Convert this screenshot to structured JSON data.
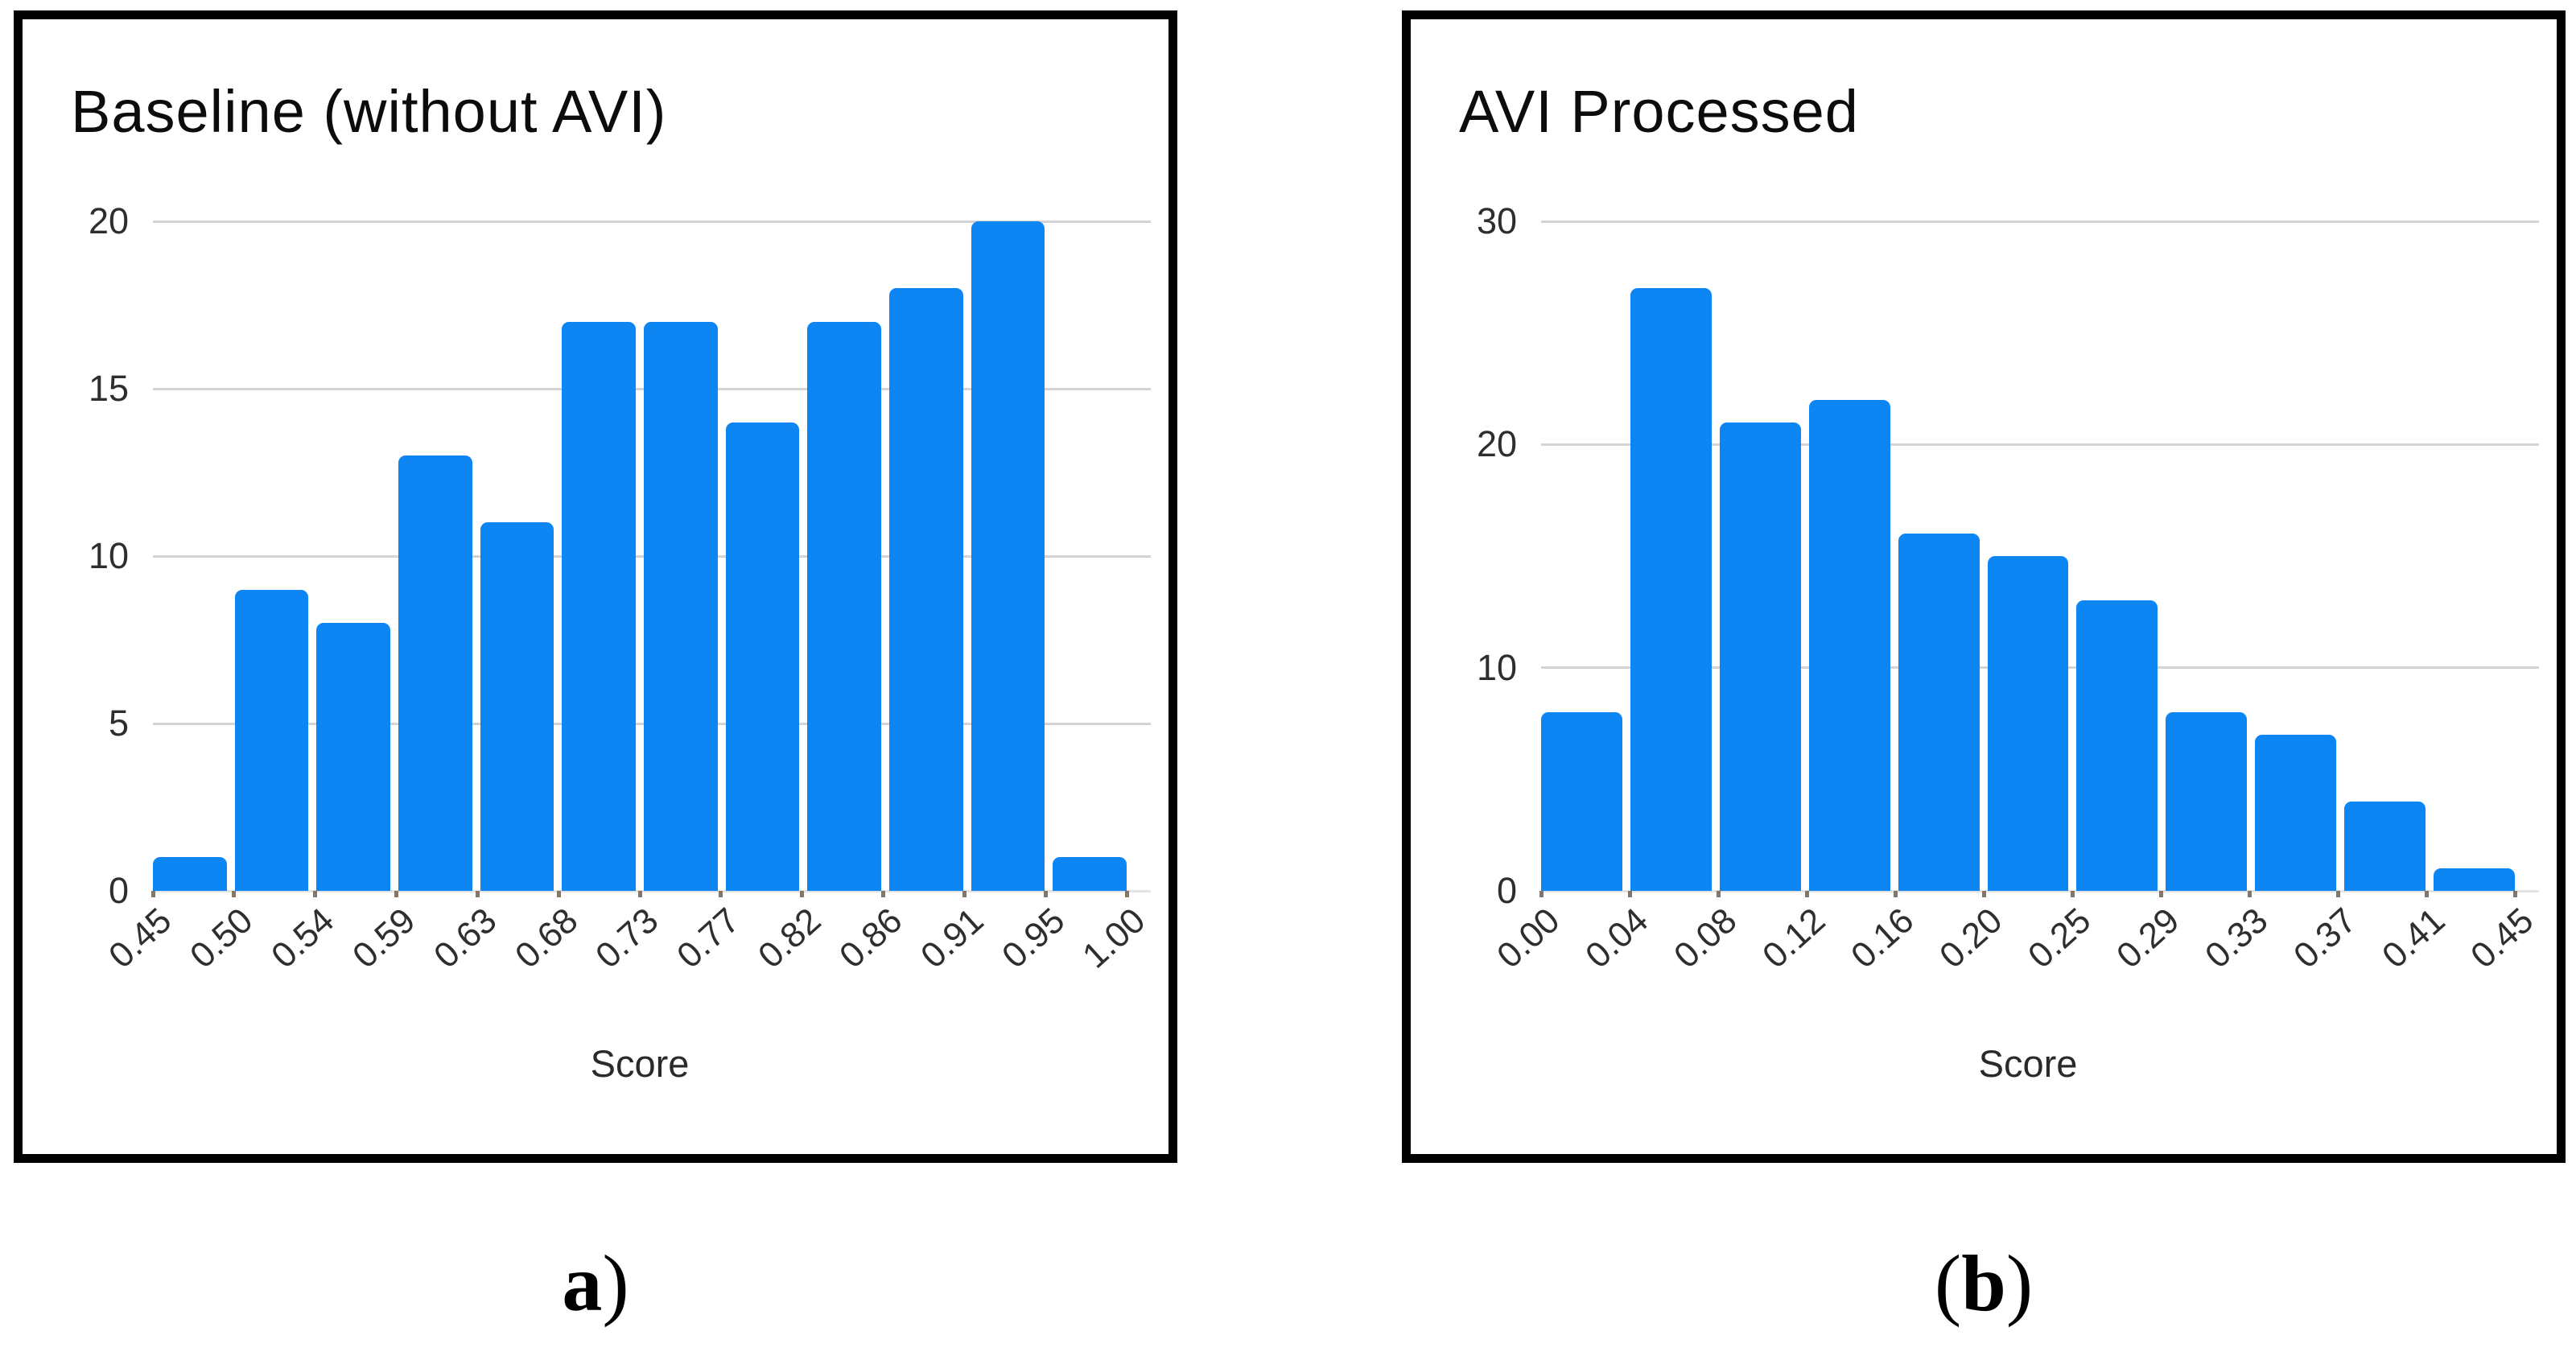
{
  "figure": {
    "captions": {
      "a": {
        "pre": "",
        "letter": "a",
        "post": ")"
      },
      "b": {
        "pre": "(",
        "letter": "b",
        "post": ")"
      }
    }
  },
  "colors": {
    "bar": "#0d85f2",
    "gridline": "#d4d4d4",
    "zero_line": "#e4e4e4",
    "tick_mark": "#867668",
    "tick_label": "#2e2e2e",
    "title_text": "#0c0c0c",
    "panel_border": "#000000"
  },
  "chart_data": [
    {
      "type": "bar",
      "title": "Baseline (without AVI)",
      "xlabel": "Score",
      "ylabel": "",
      "ylim": [
        0,
        20
      ],
      "yticks": [
        0,
        5,
        10,
        15,
        20
      ],
      "grid": true,
      "legend_position": "none",
      "bin_edges": [
        "0.45",
        "0.50",
        "0.54",
        "0.59",
        "0.63",
        "0.68",
        "0.73",
        "0.77",
        "0.82",
        "0.86",
        "0.91",
        "0.95",
        "1.00"
      ],
      "values": [
        1,
        9,
        8,
        13,
        11,
        17,
        17,
        14,
        17,
        18,
        20,
        1
      ]
    },
    {
      "type": "bar",
      "title": "AVI Processed",
      "xlabel": "Score",
      "ylabel": "",
      "ylim": [
        0,
        30
      ],
      "yticks": [
        0,
        10,
        20,
        30
      ],
      "grid": true,
      "legend_position": "none",
      "bin_edges": [
        "0.00",
        "0.04",
        "0.08",
        "0.12",
        "0.16",
        "0.20",
        "0.25",
        "0.29",
        "0.33",
        "0.37",
        "0.41",
        "0.45"
      ],
      "values": [
        8,
        27,
        21,
        22,
        16,
        15,
        13,
        8,
        7,
        4,
        1
      ]
    }
  ]
}
